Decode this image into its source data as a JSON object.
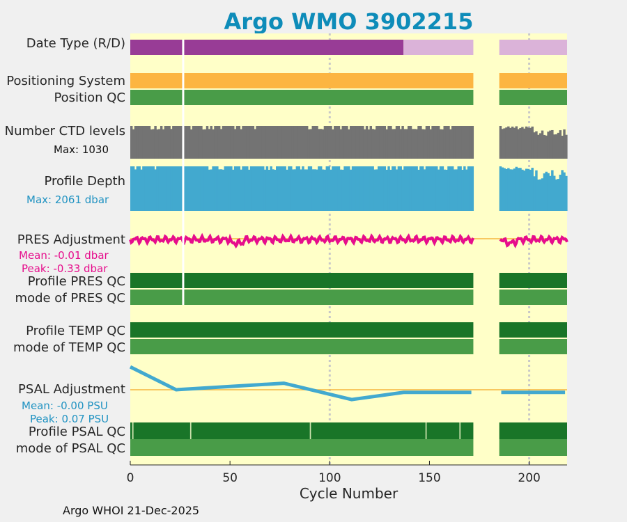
{
  "title": "Argo WMO 3902215",
  "footer": "Argo WHOI 21-Dec-2025",
  "labels": {
    "date_type": "Date Type (R/D)",
    "positioning": "Positioning System",
    "position_qc": "Position QC",
    "ctd_levels": "Number CTD levels",
    "ctd_max": "Max: 1030",
    "profile_depth": "Profile Depth",
    "depth_max": "Max: 2061 dbar",
    "pres_adj": "PRES Adjustment",
    "pres_mean": "Mean: -0.01 dbar",
    "pres_peak": "Peak: -0.33 dbar",
    "pres_qc": "Profile PRES QC",
    "pres_mode": "mode of PRES QC",
    "temp_qc": "Profile TEMP QC",
    "temp_mode": "mode of TEMP QC",
    "psal_adj": "PSAL Adjustment",
    "psal_mean": "Mean: -0.00 PSU",
    "psal_peak": "Peak: 0.07 PSU",
    "psal_qc": "Profile PSAL QC",
    "psal_mode": "mode of PSAL QC"
  },
  "colors": {
    "title": "#0e8cb9",
    "background": "#ffffc8",
    "date_realtime": "#983c96",
    "date_delayed": "#dbb3d9",
    "positioning": "#fcb541",
    "qc_good": "#499c48",
    "qc_dark": "#197528",
    "ctd": "#737373",
    "depth": "#42a9cf",
    "pres_line": "#e60d8c",
    "psal_line": "#42a9cf",
    "zero_line": "#f5b53e",
    "pres_text": "#e60d8c",
    "psal_text": "#2193c2"
  },
  "chart_data": {
    "type": "status-timeline",
    "xlabel": "Cycle Number",
    "xlim": [
      0,
      219
    ],
    "xticks": [
      0,
      50,
      100,
      150,
      200
    ],
    "gap_cycles": [
      172,
      185
    ],
    "missing_cycles": [
      26
    ],
    "date_type": {
      "realtime_until_cycle": 137,
      "delayed_from_cycle": 137
    },
    "ctd_levels_max": 1030,
    "profile_depth_max_dbar": 2061,
    "pres_adjustment": {
      "mean_dbar": -0.01,
      "peak_dbar": -0.33
    },
    "psal_adjustment": {
      "mean_psu": -0.0,
      "peak_psu": 0.07,
      "points": [
        [
          0,
          0.07
        ],
        [
          23,
          0.0
        ],
        [
          77,
          0.02
        ],
        [
          111,
          -0.03
        ],
        [
          137,
          -0.008
        ],
        [
          171,
          -0.008
        ],
        [
          186,
          -0.008
        ],
        [
          218,
          -0.008
        ]
      ]
    },
    "psal_qc_flagged_cycles": [
      1,
      30,
      90,
      148,
      165
    ]
  }
}
